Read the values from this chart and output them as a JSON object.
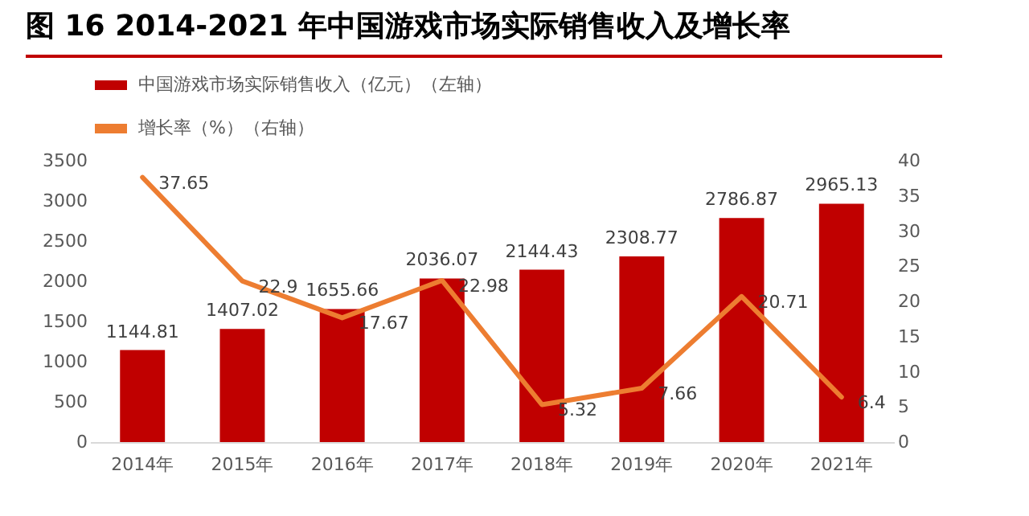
{
  "chart_data": {
    "type": "bar",
    "title": "图 16 2014-2021 年中国游戏市场实际销售收入及增长率",
    "categories": [
      "2014年",
      "2015年",
      "2016年",
      "2017年",
      "2018年",
      "2019年",
      "2020年",
      "2021年"
    ],
    "series": [
      {
        "name": "中国游戏市场实际销售收入（亿元）（左轴）",
        "color": "#c00000",
        "values": [
          1144.81,
          1407.02,
          1655.66,
          2036.07,
          2144.43,
          2308.77,
          2786.87,
          2965.13
        ]
      },
      {
        "name": "增长率（%）（右轴）",
        "type": "line",
        "axis": "y2",
        "color": "#ed7d31",
        "values": [
          37.65,
          22.9,
          17.67,
          22.98,
          5.32,
          7.66,
          20.71,
          6.4
        ]
      }
    ],
    "ylim": [
      0,
      3500
    ],
    "yticks": [
      0,
      500,
      1000,
      1500,
      2000,
      2500,
      3000,
      3500
    ],
    "y2lim": [
      0,
      40
    ],
    "y2ticks": [
      0,
      5,
      10,
      15,
      20,
      25,
      30,
      35,
      40
    ],
    "data_labels": true,
    "legend": "top",
    "grid": false
  }
}
